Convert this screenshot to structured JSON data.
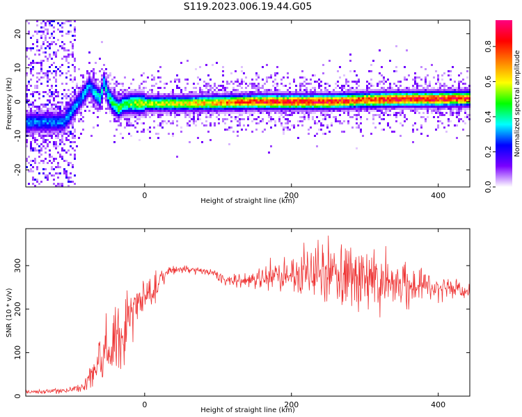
{
  "title": "S119.2023.006.19.44.G05",
  "chart_data": [
    {
      "type": "heatmap",
      "xlabel": "Height of straight line (km)",
      "ylabel": "Frequency (Hz)",
      "xlim": [
        -162,
        443
      ],
      "ylim": [
        -25,
        24
      ],
      "xticks": [
        0,
        200,
        400
      ],
      "yticks": [
        -20,
        -10,
        0,
        10,
        20
      ],
      "colorbar": {
        "label": "Normalized spectral amplitude",
        "range": [
          0.0,
          0.95
        ],
        "ticks": [
          0.0,
          0.2,
          0.4,
          0.6,
          0.8
        ],
        "tick_labels": [
          "0.0",
          "0.2",
          "0.4",
          "0.6",
          "0.8"
        ],
        "colormap": [
          "#ffffff",
          "#7a00ff",
          "#0000ff",
          "#00ffff",
          "#00ff00",
          "#ffff00",
          "#ff8000",
          "#ff0000",
          "#ff0080"
        ]
      },
      "ridge": {
        "x": [
          -110,
          -100,
          -90,
          -80,
          -75,
          -70,
          -60,
          -55,
          -50,
          -45,
          -40,
          -35,
          -30,
          -20,
          -10,
          0,
          50,
          100,
          150,
          200,
          250,
          300,
          350,
          400,
          443
        ],
        "freq": [
          -6,
          -3,
          0,
          3,
          5,
          3,
          1,
          6,
          2,
          0,
          -1,
          -2,
          -1,
          -0.5,
          -0.5,
          -0.5,
          -0.5,
          -0.3,
          0,
          0,
          0,
          0.5,
          0.8,
          0.8,
          1
        ],
        "amplitude": [
          0.3,
          0.35,
          0.3,
          0.35,
          0.3,
          0.35,
          0.4,
          0.35,
          0.4,
          0.45,
          0.45,
          0.5,
          0.45,
          0.5,
          0.55,
          0.55,
          0.6,
          0.7,
          0.8,
          0.85,
          0.85,
          0.8,
          0.85,
          0.85,
          0.8
        ]
      },
      "noise_region": [
        -162,
        -95
      ]
    },
    {
      "type": "line",
      "xlabel": "Height of straight line (km)",
      "ylabel": "SNR (10 * v/v)",
      "xlim": [
        -162,
        443
      ],
      "ylim": [
        0,
        385
      ],
      "xticks": [
        0,
        200,
        400
      ],
      "yticks": [
        0,
        100,
        200,
        300
      ],
      "color": "#ee3333",
      "series": [
        {
          "x": [
            -162,
            -140,
            -120,
            -100,
            -85,
            -75,
            -65,
            -55,
            -45,
            -35,
            -25,
            -15,
            -5,
            5,
            15,
            25,
            35,
            50,
            70,
            90,
            100,
            110,
            125,
            150,
            175,
            200,
            225,
            250,
            275,
            300,
            325,
            350,
            375,
            400,
            425,
            443
          ],
          "values": [
            10,
            10,
            12,
            15,
            22,
            45,
            70,
            95,
            120,
            140,
            170,
            205,
            215,
            220,
            250,
            275,
            290,
            292,
            290,
            285,
            280,
            268,
            265,
            270,
            275,
            280,
            290,
            285,
            270,
            265,
            262,
            258,
            255,
            252,
            248,
            245
          ],
          "spread": [
            4,
            4,
            5,
            6,
            10,
            20,
            35,
            50,
            60,
            65,
            70,
            55,
            40,
            35,
            25,
            15,
            10,
            8,
            8,
            8,
            10,
            10,
            12,
            15,
            25,
            40,
            60,
            65,
            65,
            60,
            55,
            45,
            35,
            25,
            18,
            15
          ]
        }
      ]
    }
  ]
}
